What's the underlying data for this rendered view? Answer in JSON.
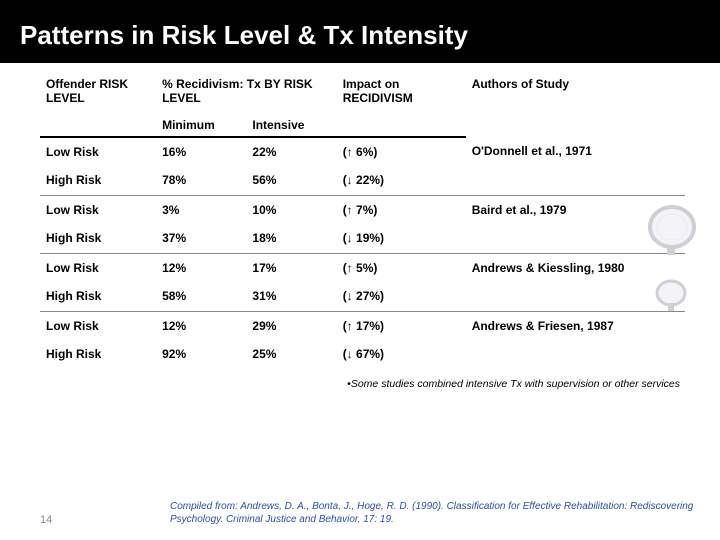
{
  "title": "Patterns in Risk Level & Tx Intensity",
  "columns": {
    "c1": "Offender RISK LEVEL",
    "c2": "% Recidivism: Tx BY RISK LEVEL",
    "c2a": "Minimum",
    "c2b": "Intensive",
    "c3": "Impact on RECIDIVISM",
    "c4": "Authors of Study"
  },
  "groups": [
    {
      "authors": "O'Donnell et al., 1971",
      "rows": [
        {
          "risk": "Low Risk",
          "min": "16%",
          "int": "22%",
          "impact": "(↑  6%)"
        },
        {
          "risk": "High Risk",
          "min": "78%",
          "int": "56%",
          "impact": "(↓ 22%)"
        }
      ]
    },
    {
      "authors": "Baird et al., 1979",
      "rows": [
        {
          "risk": "Low Risk",
          "min": " 3%",
          "int": "10%",
          "impact": "(↑  7%)"
        },
        {
          "risk": "High Risk",
          "min": "37%",
          "int": "18%",
          "impact": "(↓ 19%)"
        }
      ]
    },
    {
      "authors": "Andrews & Kiessling, 1980",
      "rows": [
        {
          "risk": "Low Risk",
          "min": "12%",
          "int": "17%",
          "impact": "(↑  5%)"
        },
        {
          "risk": "High Risk",
          "min": "58%",
          "int": "31%",
          "impact": "(↓ 27%)"
        }
      ]
    },
    {
      "authors": "Andrews & Friesen, 1987",
      "rows": [
        {
          "risk": "Low Risk",
          "min": "12%",
          "int": "29%",
          "impact": "(↑ 17%)"
        },
        {
          "risk": "High Risk",
          "min": "92%",
          "int": "25%",
          "impact": "(↓ 67%)"
        }
      ]
    }
  ],
  "note_bullet": "•",
  "note": "Some studies combined intensive Tx with supervision or other services",
  "page_number": "14",
  "citation": "Compiled from: Andrews, D. A., Bonta, J., Hoge, R. D. (1990). Classification for Effective Rehabilitation: Rediscovering Psychology. Criminal Justice and Behavior, 17: 19.",
  "col_widths": {
    "c1": "18%",
    "c2a": "14%",
    "c2b": "14%",
    "c3": "20%",
    "c4": "34%"
  },
  "colors": {
    "magnifier_rim": "#cfcfd6",
    "magnifier_fill": "#f4f4f8",
    "handle": "#b0b0b8"
  }
}
